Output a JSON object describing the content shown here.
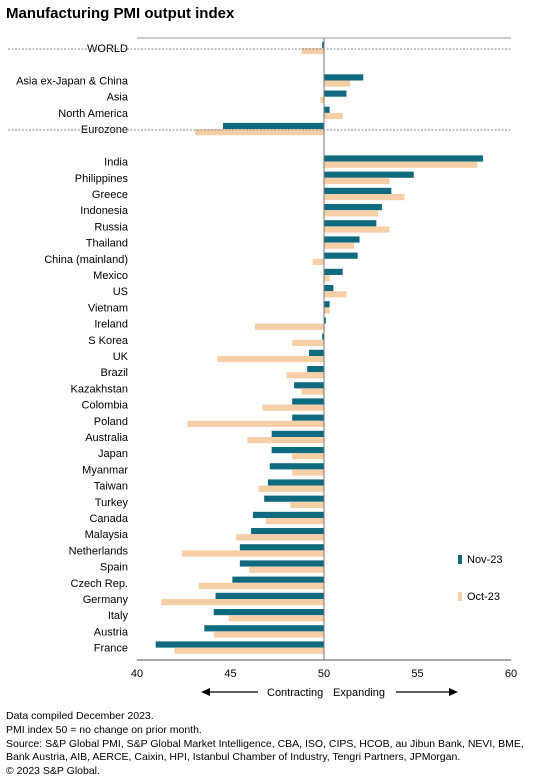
{
  "title": "Manufacturing PMI output index",
  "chart_data": {
    "type": "bar",
    "orientation": "horizontal",
    "title": "Manufacturing PMI output index",
    "xlim": [
      40,
      60
    ],
    "xticks": [
      40,
      45,
      50,
      55,
      60
    ],
    "baseline": 50,
    "series": [
      {
        "name": "Nov-23",
        "color": "#0f6a80"
      },
      {
        "name": "Oct-23",
        "color": "#f6cfa6"
      }
    ],
    "legend_position": "right",
    "direction_labels": {
      "left": "Contracting",
      "right": "Expanding"
    },
    "groups": [
      {
        "items": [
          {
            "label": "WORLD",
            "nov": 49.9,
            "oct": 48.8
          }
        ]
      },
      {
        "items": [
          {
            "label": "Asia ex-Japan & China",
            "nov": 52.1,
            "oct": 51.4
          },
          {
            "label": "Asia",
            "nov": 51.2,
            "oct": 49.8
          },
          {
            "label": "North America",
            "nov": 50.3,
            "oct": 51.0
          },
          {
            "label": "Eurozone",
            "nov": 44.6,
            "oct": 43.1
          }
        ]
      },
      {
        "items": [
          {
            "label": "India",
            "nov": 58.5,
            "oct": 58.2
          },
          {
            "label": "Philippines",
            "nov": 54.8,
            "oct": 53.5
          },
          {
            "label": "Greece",
            "nov": 53.6,
            "oct": 54.3
          },
          {
            "label": "Indonesia",
            "nov": 53.1,
            "oct": 52.9
          },
          {
            "label": "Russia",
            "nov": 52.8,
            "oct": 53.5
          },
          {
            "label": "Thailand",
            "nov": 51.9,
            "oct": 51.6
          },
          {
            "label": "China (mainland)",
            "nov": 51.8,
            "oct": 49.4
          },
          {
            "label": "Mexico",
            "nov": 51.0,
            "oct": 50.3
          },
          {
            "label": "US",
            "nov": 50.5,
            "oct": 51.2
          },
          {
            "label": "Vietnam",
            "nov": 50.3,
            "oct": 50.3
          },
          {
            "label": "Ireland",
            "nov": 50.1,
            "oct": 46.3
          },
          {
            "label": "S Korea",
            "nov": 49.9,
            "oct": 48.3
          },
          {
            "label": "UK",
            "nov": 49.2,
            "oct": 44.3
          },
          {
            "label": "Brazil",
            "nov": 49.1,
            "oct": 48.0
          },
          {
            "label": "Kazakhstan",
            "nov": 48.4,
            "oct": 48.8
          },
          {
            "label": "Colombia",
            "nov": 48.3,
            "oct": 46.7
          },
          {
            "label": "Poland",
            "nov": 48.3,
            "oct": 42.7
          },
          {
            "label": "Australia",
            "nov": 47.2,
            "oct": 45.9
          },
          {
            "label": "Japan",
            "nov": 47.2,
            "oct": 48.3
          },
          {
            "label": "Myanmar",
            "nov": 47.1,
            "oct": 48.3
          },
          {
            "label": "Taiwan",
            "nov": 47.0,
            "oct": 46.5
          },
          {
            "label": "Turkey",
            "nov": 46.8,
            "oct": 48.2
          },
          {
            "label": "Canada",
            "nov": 46.2,
            "oct": 46.9
          },
          {
            "label": "Malaysia",
            "nov": 46.1,
            "oct": 45.3
          },
          {
            "label": "Netherlands",
            "nov": 45.5,
            "oct": 42.4
          },
          {
            "label": "Spain",
            "nov": 45.5,
            "oct": 46.0
          },
          {
            "label": "Czech Rep.",
            "nov": 45.1,
            "oct": 43.3
          },
          {
            "label": "Germany",
            "nov": 44.2,
            "oct": 41.3
          },
          {
            "label": "Italy",
            "nov": 44.1,
            "oct": 44.9
          },
          {
            "label": "Austria",
            "nov": 43.6,
            "oct": 44.1
          },
          {
            "label": "France",
            "nov": 41.0,
            "oct": 42.0
          }
        ]
      }
    ]
  },
  "footnotes": [
    "Data compiled December 2023.",
    "PMI index 50 = no change on prior month.",
    "Source: S&P Global PMI, S&P Global Market Intelligence, CBA, ISO, CIPS, HCOB, au Jibun Bank, NEVI, BME,",
    "Bank Austria, AIB, AERCE, Caixin, HPI, Istanbul Chamber of Industry, Tengri Partners, JPMorgan.",
    "© 2023 S&P Global."
  ]
}
